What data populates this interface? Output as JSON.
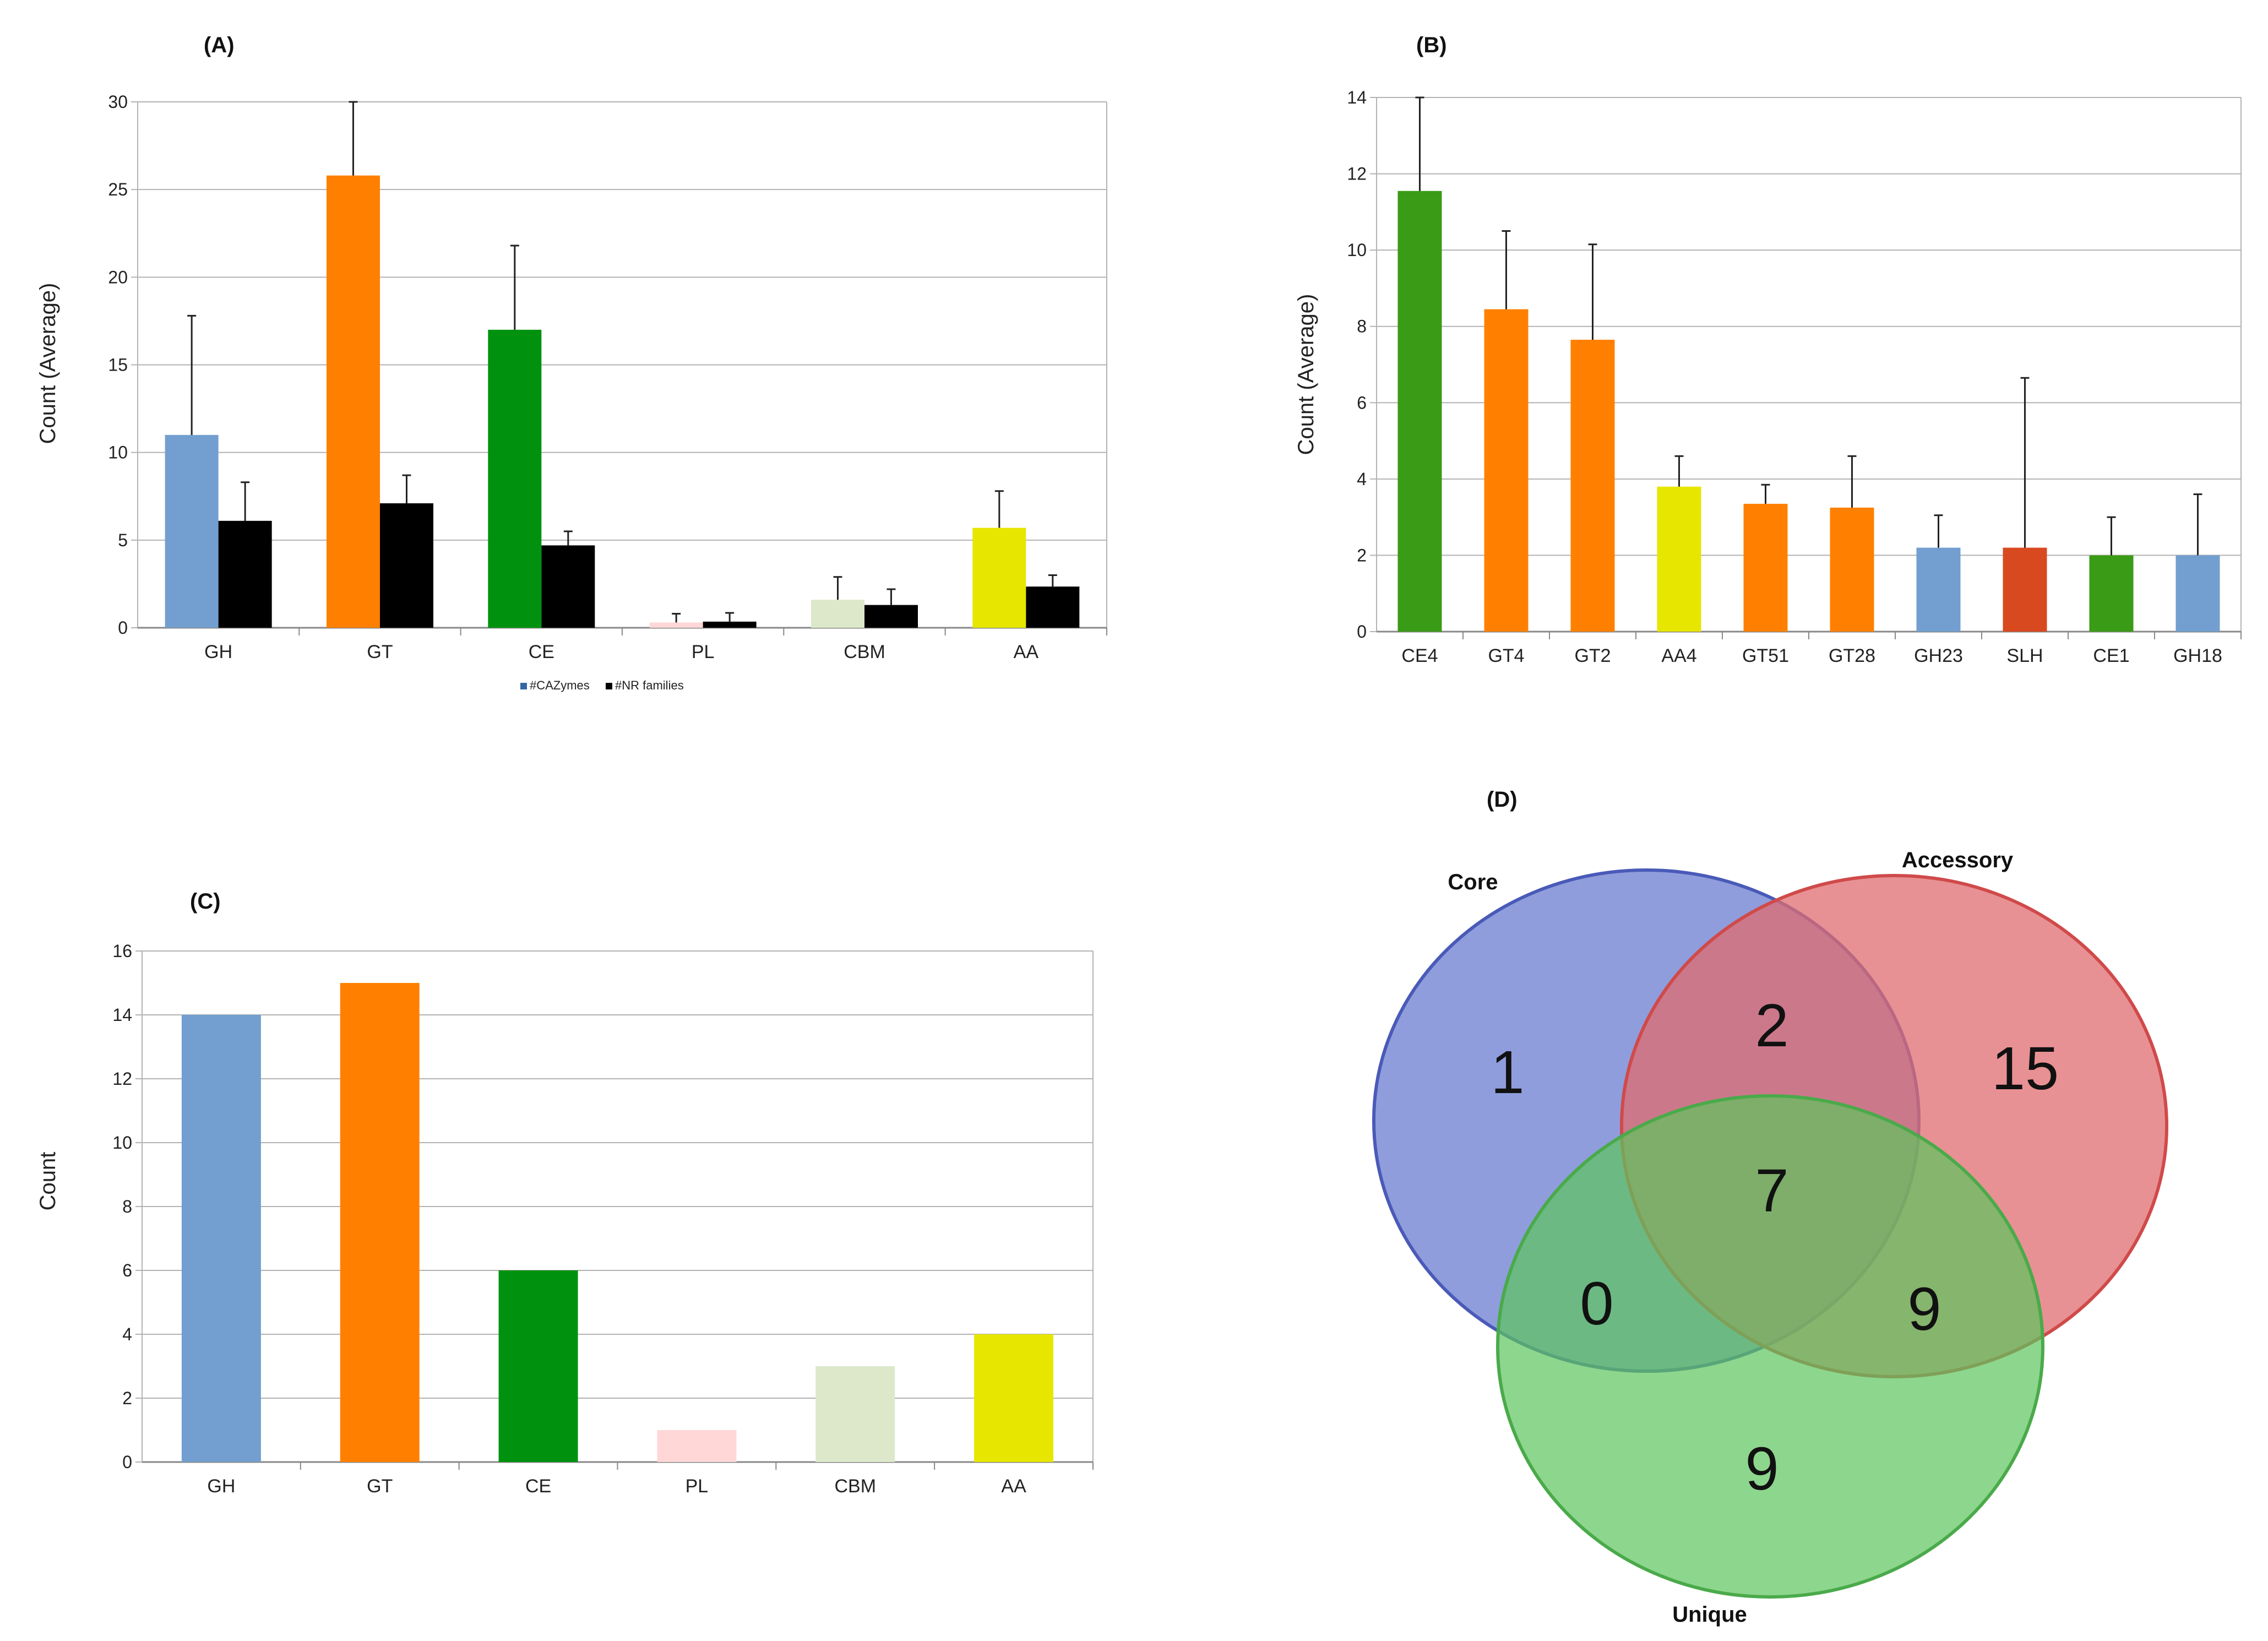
{
  "chart_data": [
    {
      "panel": "(A)",
      "type": "bar",
      "title": "",
      "xlabel": "",
      "ylabel": "Count (Average)",
      "ylim": [
        0,
        30
      ],
      "yticks": [
        0,
        5,
        10,
        15,
        20,
        25,
        30
      ],
      "grid": true,
      "categories": [
        "GH",
        "GT",
        "CE",
        "PL",
        "CBM",
        "AA"
      ],
      "category_colors": [
        "#729fcf",
        "#ff7f00",
        "#00920f",
        "#ffd7d7",
        "#dde8cb",
        "#e6e600"
      ],
      "series": [
        {
          "name": "#CAZymes",
          "color": "#729fcf",
          "values": [
            11,
            25.8,
            17,
            0.3,
            1.6,
            5.7
          ],
          "errors": [
            6.8,
            4.2,
            4.8,
            0.5,
            1.3,
            2.1
          ]
        },
        {
          "name": "#NR families",
          "color": "#000000",
          "values": [
            6.1,
            7.1,
            4.7,
            0.35,
            1.3,
            2.35
          ],
          "errors": [
            2.2,
            1.6,
            0.8,
            0.5,
            0.9,
            0.65
          ]
        }
      ],
      "legend": {
        "position": "bottom-center",
        "labels": [
          "#CAZymes",
          "#NR families"
        ]
      }
    },
    {
      "panel": "(B)",
      "type": "bar",
      "title": "",
      "xlabel": "",
      "ylabel": "Count (Average)",
      "ylim": [
        0,
        14
      ],
      "yticks": [
        0,
        2,
        4,
        6,
        8,
        10,
        12,
        14
      ],
      "grid": true,
      "categories": [
        "CE4",
        "GT4",
        "GT2",
        "AA4",
        "GT51",
        "GT28",
        "GH23",
        "SLH",
        "CE1",
        "GH18"
      ],
      "colors": [
        "#3a9b16",
        "#ff8000",
        "#ff8000",
        "#e6e600",
        "#ff8000",
        "#ff8000",
        "#729fcf",
        "#d9491f",
        "#3a9b16",
        "#729fcf"
      ],
      "values": [
        11.55,
        8.45,
        7.65,
        3.8,
        3.35,
        3.25,
        2.2,
        2.2,
        2.0,
        2.0
      ],
      "errors": [
        2.6,
        2.05,
        2.5,
        0.8,
        0.5,
        1.35,
        0.85,
        4.45,
        1.0,
        1.6
      ]
    },
    {
      "panel": "(C)",
      "type": "bar",
      "title": "",
      "xlabel": "",
      "ylabel": "Count",
      "ylim": [
        0,
        16
      ],
      "yticks": [
        0,
        2,
        4,
        6,
        8,
        10,
        12,
        14,
        16
      ],
      "grid": true,
      "categories": [
        "GH",
        "GT",
        "CE",
        "PL",
        "CBM",
        "AA"
      ],
      "colors": [
        "#729fcf",
        "#ff8000",
        "#00920f",
        "#ffd7d7",
        "#dde8cb",
        "#e6e600"
      ],
      "values": [
        14,
        15,
        6,
        1,
        3,
        4
      ]
    },
    {
      "panel": "(D)",
      "type": "venn",
      "sets": [
        "Core",
        "Accessory",
        "Unique"
      ],
      "colors": [
        "#6a7cd0",
        "#e06c70",
        "#5cc45c"
      ],
      "regions": {
        "core_only": 1,
        "accessory_only": 15,
        "unique_only": 9,
        "core_accessory": 2,
        "core_unique": 0,
        "accessory_unique": 9,
        "all_three": 7
      }
    }
  ]
}
